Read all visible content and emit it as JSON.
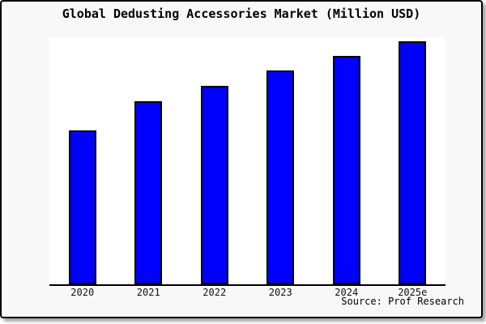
{
  "chart_data": {
    "type": "bar",
    "title": "Global Dedusting Accessories Market (Million USD)",
    "categories": [
      "2020",
      "2021",
      "2022",
      "2023",
      "2024",
      "2025e"
    ],
    "values": [
      63.2,
      75.4,
      81.7,
      88.0,
      93.9,
      100
    ],
    "ylim": [
      0,
      101.7
    ],
    "xlabel": "",
    "ylabel": "",
    "grid": false,
    "legend": false,
    "bar_color": "#0000ff",
    "bar_edge_color": "#000000",
    "note": "No y-axis, gridlines or value labels shown in the image; values are relative estimates scaled so 2025e = 100"
  },
  "source": {
    "text": "Source: Prof Research"
  },
  "colors": {
    "card_background": "#f8f8f8",
    "plot_background": "#ffffff",
    "border": "#000000",
    "text": "#000000"
  }
}
